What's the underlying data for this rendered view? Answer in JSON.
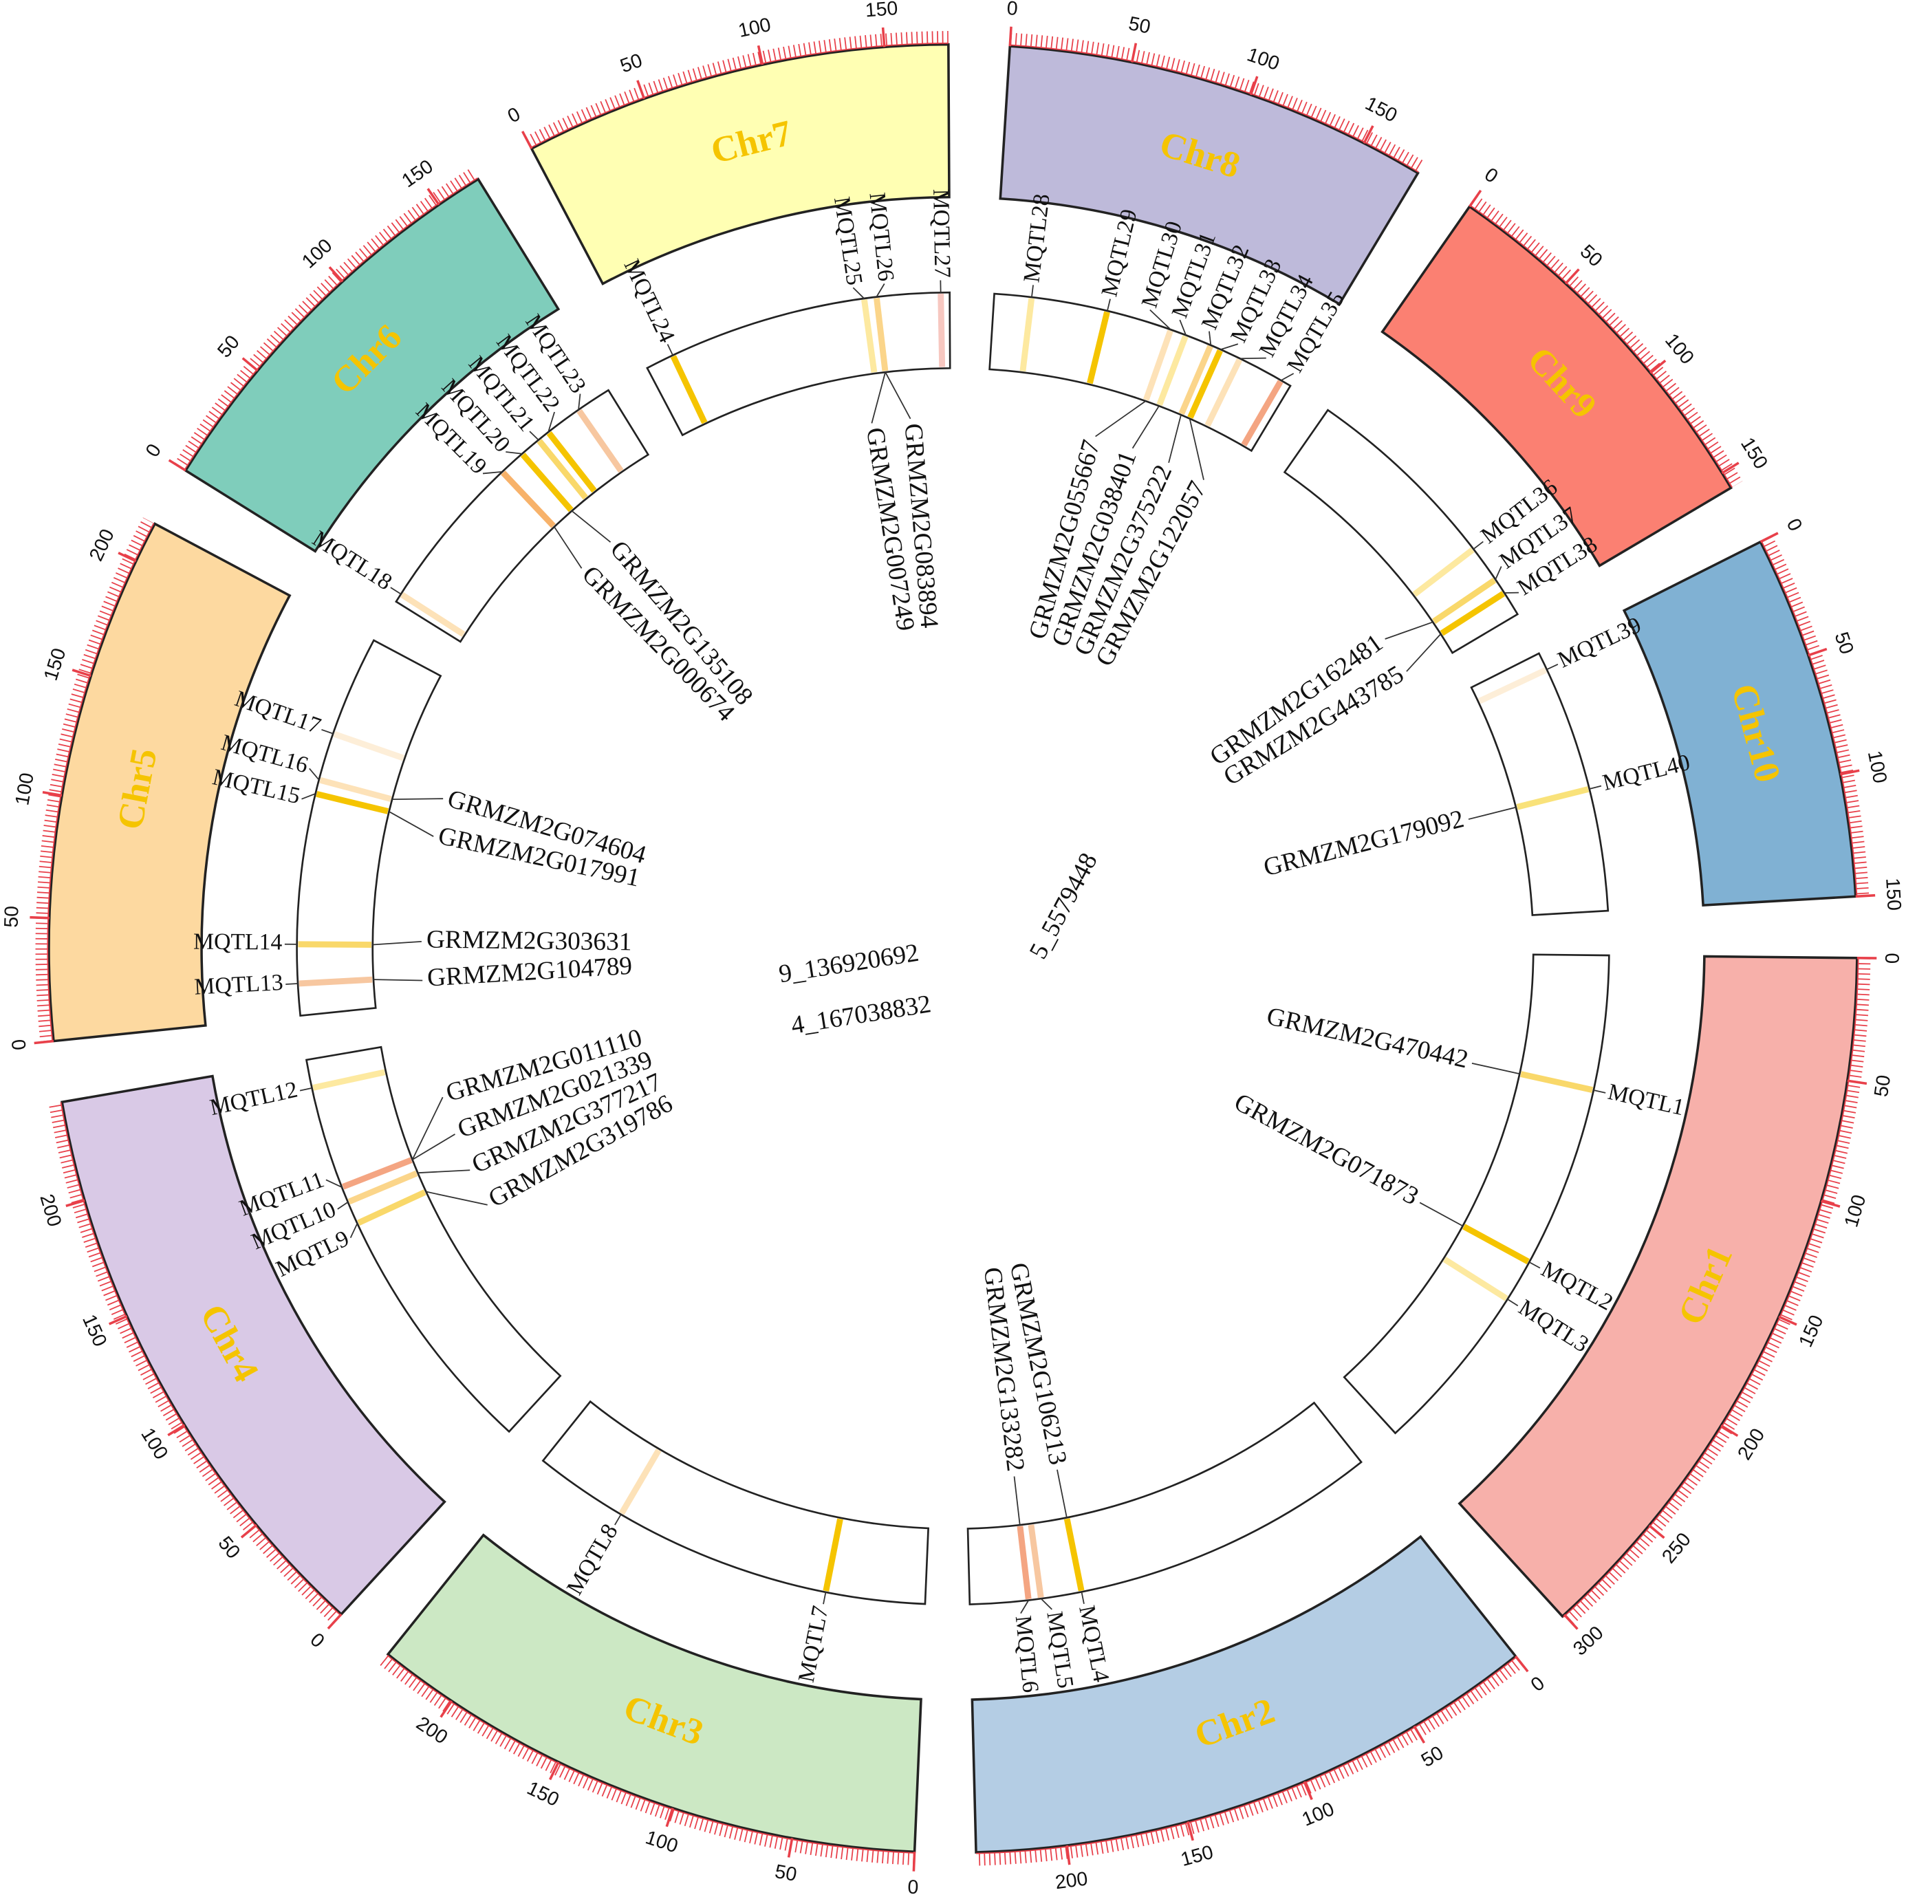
{
  "chart_data": {
    "type": "circos",
    "chromosomes": [
      {
        "name": "Chr1",
        "color": "#f7b0aa",
        "length": 301,
        "ticks": [
          0,
          50,
          100,
          150,
          200,
          250,
          300
        ],
        "mqtls": [
          {
            "label": "MQTL1",
            "position": 76,
            "color": "#f9d86a",
            "genes": [
              "GRMZM2G470442"
            ]
          },
          {
            "label": "MQTL2",
            "position": 179,
            "color": "#f5c400",
            "genes": [
              "GRMZM2G071873"
            ]
          },
          {
            "label": "MQTL3",
            "position": 203,
            "color": "#fde9a0",
            "genes": []
          }
        ]
      },
      {
        "name": "Chr2",
        "color": "#b4cde4",
        "length": 237,
        "ticks": [
          0,
          50,
          100,
          150,
          200
        ],
        "mqtls": [
          {
            "label": "MQTL4",
            "position": 174,
            "color": "#f5c400",
            "genes": [
              "GRMZM2G106213"
            ]
          },
          {
            "label": "MQTL5",
            "position": 197,
            "color": "#f7c7a0",
            "genes": []
          },
          {
            "label": "MQTL6",
            "position": 204,
            "color": "#f4a582",
            "genes": [
              "GRMZM2G133282"
            ]
          }
        ]
      },
      {
        "name": "Chr3",
        "color": "#cce8c4",
        "length": 232,
        "ticks": [
          0,
          50,
          100,
          150,
          200
        ],
        "mqtls": [
          {
            "label": "MQTL7",
            "position": 56,
            "color": "#f5c400",
            "genes": []
          },
          {
            "label": "MQTL8",
            "position": 179,
            "color": "#fde2b8",
            "genes": []
          }
        ]
      },
      {
        "name": "Chr4",
        "color": "#d9c9e6",
        "length": 241,
        "ticks": [
          0,
          50,
          100,
          150,
          200
        ],
        "mqtls": [
          {
            "label": "MQTL9",
            "position": 145,
            "color": "#f9d86a",
            "genes": [
              "GRMZM2G319786"
            ]
          },
          {
            "label": "MQTL10",
            "position": 158,
            "color": "#fbd58a",
            "genes": [
              "GRMZM2G377217"
            ]
          },
          {
            "label": "MQTL11",
            "position": 167,
            "color": "#f4a582",
            "genes": [
              "GRMZM2G021339",
              "GRMZM2G011110"
            ]
          },
          {
            "label": "MQTL12",
            "position": 225,
            "color": "#fde9a0",
            "genes": []
          }
        ]
      },
      {
        "name": "Chr5",
        "color": "#fdd9a0",
        "length": 217,
        "ticks": [
          0,
          50,
          100,
          150,
          200
        ],
        "mqtls": [
          {
            "label": "MQTL13",
            "position": 18,
            "color": "#f7c7a0",
            "genes": [
              "GRMZM2G104789"
            ]
          },
          {
            "label": "MQTL14",
            "position": 40,
            "color": "#f9d86a",
            "genes": [
              "GRMZM2G303631"
            ]
          },
          {
            "label": "MQTL15",
            "position": 125,
            "color": "#f5c400",
            "genes": [
              "GRMZM2G017991"
            ]
          },
          {
            "label": "MQTL16",
            "position": 133,
            "color": "#fde2b8",
            "genes": [
              "GRMZM2G074604"
            ]
          },
          {
            "label": "MQTL17",
            "position": 160,
            "color": "#fdeed8",
            "genes": []
          }
        ]
      },
      {
        "name": "Chr6",
        "color": "#7fcdbb",
        "length": 169,
        "ticks": [
          0,
          50,
          100,
          150
        ],
        "mqtls": [
          {
            "label": "MQTL18",
            "position": 5,
            "color": "#fde2b8",
            "genes": []
          },
          {
            "label": "MQTL19",
            "position": 94,
            "color": "#f7b26a",
            "genes": [
              "GRMZM2G000674"
            ]
          },
          {
            "label": "MQTL20",
            "position": 109,
            "color": "#f5c400",
            "genes": [
              "GRMZM2G135108"
            ]
          },
          {
            "label": "MQTL21",
            "position": 121,
            "color": "#f9d86a",
            "genes": []
          },
          {
            "label": "MQTL22",
            "position": 128,
            "color": "#f5c400",
            "genes": []
          },
          {
            "label": "MQTL23",
            "position": 149,
            "color": "#f7c7a0",
            "genes": []
          }
        ]
      },
      {
        "name": "Chr7",
        "color": "#ffffb3",
        "length": 176,
        "ticks": [
          0,
          50,
          100,
          150
        ],
        "mqtls": [
          {
            "label": "MQTL24",
            "position": 16,
            "color": "#f5c400",
            "genes": []
          },
          {
            "label": "MQTL25",
            "position": 128,
            "color": "#fde9a0",
            "genes": []
          },
          {
            "label": "MQTL26",
            "position": 135,
            "color": "#fbd58a",
            "genes": [
              "GRMZM2G007249",
              "GRMZM2G083894"
            ]
          },
          {
            "label": "MQTL27",
            "position": 171,
            "color": "#f7c7c0",
            "genes": []
          }
        ]
      },
      {
        "name": "Chr8",
        "color": "#bebada",
        "length": 175,
        "ticks": [
          0,
          50,
          100,
          150
        ],
        "mqtls": [
          {
            "label": "MQTL28",
            "position": 21,
            "color": "#fde9a0",
            "genes": []
          },
          {
            "label": "MQTL29",
            "position": 64,
            "color": "#f5c400",
            "genes": []
          },
          {
            "label": "MQTL30",
            "position": 101,
            "color": "#fde2b8",
            "genes": [
              "GRMZM2G055667"
            ]
          },
          {
            "label": "MQTL31",
            "position": 110,
            "color": "#fde9a0",
            "genes": [
              "GRMZM2G038401"
            ]
          },
          {
            "label": "MQTL32",
            "position": 125,
            "color": "#fbd58a",
            "genes": [
              "GRMZM2G375222"
            ]
          },
          {
            "label": "MQTL33",
            "position": 131,
            "color": "#f5c400",
            "genes": [
              "GRMZM2G122057"
            ]
          },
          {
            "label": "MQTL34",
            "position": 143,
            "color": "#fde2b8",
            "genes": []
          },
          {
            "label": "MQTL35",
            "position": 169,
            "color": "#f4a582",
            "genes": []
          }
        ]
      },
      {
        "name": "Chr9",
        "color": "#fb8072",
        "length": 157,
        "ticks": [
          0,
          50,
          100,
          150
        ],
        "mqtls": [
          {
            "label": "MQTL36",
            "position": 113,
            "color": "#fde9a0",
            "genes": []
          },
          {
            "label": "MQTL37",
            "position": 134,
            "color": "#f9d86a",
            "genes": [
              "GRMZM2G162481"
            ]
          },
          {
            "label": "MQTL38",
            "position": 143,
            "color": "#f5c400",
            "genes": [
              "GRMZM2G443785"
            ]
          }
        ]
      },
      {
        "name": "Chr10",
        "color": "#80b1d3",
        "length": 150,
        "ticks": [
          0,
          50,
          100,
          150
        ],
        "mqtls": [
          {
            "label": "MQTL39",
            "position": 10,
            "color": "#fdeed8",
            "genes": []
          },
          {
            "label": "MQTL40",
            "position": 81,
            "color": "#f9e27a",
            "genes": [
              "GRMZM2G179092"
            ]
          }
        ]
      }
    ],
    "snps": [
      "5_5579448",
      "9_136920692",
      "4_167038832"
    ]
  }
}
